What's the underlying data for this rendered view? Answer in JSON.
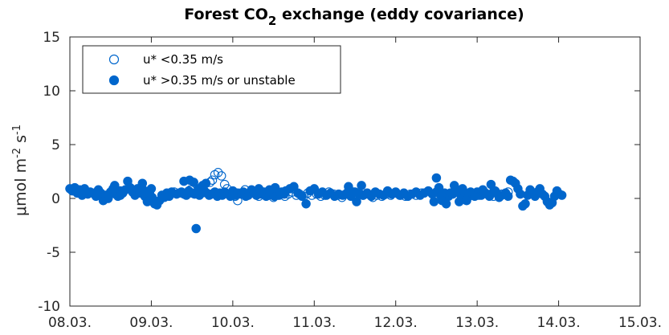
{
  "chart_data": {
    "type": "scatter",
    "title": "Forest CO",
    "title_sub": "2",
    "title_rest": " exchange (eddy covariance)",
    "ylabel": {
      "prefix": "μmol m",
      "exp1": "-2",
      "mid": " s",
      "exp2": "-1"
    },
    "xlabel": "",
    "x_ticks": [
      "08.03.",
      "09.03.",
      "10.03.",
      "11.03.",
      "12.03.",
      "13.03.",
      "14.03.",
      "15.03."
    ],
    "y_ticks": [
      "-10",
      "-5",
      "0",
      "5",
      "10",
      "15"
    ],
    "xlim": [
      0,
      7
    ],
    "ylim": [
      -10,
      15
    ],
    "grid": false,
    "legend_position": "top-left",
    "marker_color": "#0066cc",
    "series": [
      {
        "name": "u* <0.35 m/s",
        "marker": "open-circle",
        "points": [
          [
            0.28,
            0.5
          ],
          [
            1.28,
            0.6
          ],
          [
            1.48,
            0.8
          ],
          [
            1.72,
            1.5
          ],
          [
            1.75,
            1.7
          ],
          [
            1.78,
            2.2
          ],
          [
            1.82,
            2.4
          ],
          [
            1.86,
            2.1
          ],
          [
            1.9,
            1.3
          ],
          [
            1.93,
            0.9
          ],
          [
            1.96,
            0.4
          ],
          [
            2.0,
            0.6
          ],
          [
            2.03,
            0.2
          ],
          [
            2.06,
            -0.2
          ],
          [
            2.1,
            0.5
          ],
          [
            2.15,
            0.8
          ],
          [
            2.19,
            0.3
          ],
          [
            2.23,
            0.7
          ],
          [
            2.28,
            0.4
          ],
          [
            2.32,
            0.2
          ],
          [
            2.36,
            0.5
          ],
          [
            2.4,
            0.3
          ],
          [
            2.45,
            0.4
          ],
          [
            2.5,
            0.1
          ],
          [
            2.55,
            0.3
          ],
          [
            2.6,
            0.5
          ],
          [
            2.64,
            0.2
          ],
          [
            2.68,
            0.4
          ],
          [
            2.73,
            0.6
          ],
          [
            2.78,
            0.3
          ],
          [
            2.82,
            0.4
          ],
          [
            2.87,
            0.2
          ],
          [
            2.92,
            0.5
          ],
          [
            2.97,
            0.3
          ],
          [
            3.03,
            0.4
          ],
          [
            3.08,
            0.2
          ],
          [
            3.13,
            0.3
          ],
          [
            3.18,
            0.6
          ],
          [
            3.24,
            0.4
          ],
          [
            3.29,
            0.3
          ],
          [
            3.34,
            0.1
          ],
          [
            3.39,
            0.4
          ],
          [
            3.45,
            0.3
          ],
          [
            3.5,
            0.2
          ],
          [
            3.55,
            0.5
          ],
          [
            3.6,
            0.3
          ],
          [
            3.66,
            0.4
          ],
          [
            3.72,
            0.1
          ],
          [
            3.77,
            0.3
          ],
          [
            3.83,
            0.2
          ],
          [
            3.88,
            0.4
          ],
          [
            3.94,
            0.3
          ],
          [
            4.0,
            0.5
          ],
          [
            4.06,
            0.3
          ],
          [
            4.12,
            0.2
          ],
          [
            4.18,
            0.4
          ],
          [
            4.25,
            0.3
          ],
          [
            4.32,
            0.5
          ],
          [
            5.02,
            0.3
          ],
          [
            5.1,
            0.5
          ],
          [
            5.2,
            0.2
          ],
          [
            5.3,
            0.4
          ],
          [
            5.38,
            0.6
          ]
        ]
      },
      {
        "name": "u* >0.35 m/s or unstable",
        "marker": "filled-circle",
        "points": [
          [
            0.0,
            0.9
          ],
          [
            0.03,
            0.7
          ],
          [
            0.06,
            1.0
          ],
          [
            0.09,
            0.5
          ],
          [
            0.12,
            0.8
          ],
          [
            0.15,
            0.3
          ],
          [
            0.18,
            0.9
          ],
          [
            0.22,
            0.4
          ],
          [
            0.25,
            0.6
          ],
          [
            0.32,
            0.2
          ],
          [
            0.35,
            0.8
          ],
          [
            0.38,
            0.5
          ],
          [
            0.41,
            -0.2
          ],
          [
            0.44,
            0.3
          ],
          [
            0.47,
            0.0
          ],
          [
            0.5,
            0.6
          ],
          [
            0.53,
            0.9
          ],
          [
            0.56,
            0.4
          ],
          [
            0.59,
            0.2
          ],
          [
            0.62,
            0.7
          ],
          [
            0.65,
            0.5
          ],
          [
            0.68,
            0.8
          ],
          [
            0.71,
            1.6
          ],
          [
            0.74,
            1.0
          ],
          [
            0.77,
            0.6
          ],
          [
            0.8,
            0.3
          ],
          [
            0.83,
            0.9
          ],
          [
            0.86,
            0.5
          ],
          [
            0.89,
            1.4
          ],
          [
            0.92,
            0.2
          ],
          [
            0.95,
            -0.3
          ],
          [
            0.98,
            0.4
          ],
          [
            1.01,
            0.1
          ],
          [
            1.04,
            -0.5
          ],
          [
            1.07,
            -0.6
          ],
          [
            1.1,
            -0.2
          ],
          [
            1.13,
            0.3
          ],
          [
            1.16,
            0.1
          ],
          [
            1.19,
            0.5
          ],
          [
            1.22,
            0.2
          ],
          [
            1.25,
            0.6
          ],
          [
            1.31,
            0.4
          ],
          [
            1.34,
            0.5
          ],
          [
            1.37,
            0.6
          ],
          [
            1.4,
            0.4
          ],
          [
            1.43,
            0.3
          ],
          [
            1.46,
            0.7
          ],
          [
            1.5,
            0.5
          ],
          [
            1.53,
            0.4
          ],
          [
            1.56,
            0.6
          ],
          [
            1.59,
            0.3
          ],
          [
            1.62,
            0.5
          ],
          [
            1.65,
            0.7
          ],
          [
            1.68,
            0.5
          ],
          [
            1.71,
            0.3
          ],
          [
            1.74,
            0.4
          ],
          [
            1.78,
            0.6
          ],
          [
            1.81,
            0.2
          ],
          [
            1.84,
            0.5
          ],
          [
            1.87,
            0.3
          ],
          [
            1.9,
            0.6
          ],
          [
            1.94,
            0.4
          ],
          [
            1.97,
            0.2
          ],
          [
            2.0,
            0.7
          ],
          [
            2.03,
            0.3
          ],
          [
            2.06,
            0.5
          ],
          [
            2.1,
            0.4
          ],
          [
            2.13,
            0.6
          ],
          [
            2.16,
            0.2
          ],
          [
            2.2,
            0.4
          ],
          [
            2.23,
            0.8
          ],
          [
            2.26,
            0.5
          ],
          [
            2.29,
            0.3
          ],
          [
            2.32,
            0.9
          ],
          [
            2.35,
            0.4
          ],
          [
            2.38,
            0.6
          ],
          [
            2.41,
            0.2
          ],
          [
            2.44,
            0.3
          ],
          [
            2.48,
            0.5
          ],
          [
            2.51,
            0.2
          ],
          [
            2.54,
            0.4
          ],
          [
            2.57,
            0.3
          ],
          [
            2.6,
            0.6
          ],
          [
            2.63,
            0.4
          ],
          [
            1.55,
            -2.8
          ],
          [
            1.4,
            1.6
          ],
          [
            1.47,
            1.7
          ],
          [
            1.52,
            1.5
          ],
          [
            1.58,
            0.9
          ],
          [
            1.63,
            1.2
          ],
          [
            1.67,
            1.4
          ],
          [
            2.45,
            0.8
          ],
          [
            2.52,
            1.0
          ],
          [
            2.58,
            0.4
          ],
          [
            2.65,
            0.7
          ],
          [
            2.7,
            0.9
          ],
          [
            2.75,
            1.1
          ],
          [
            2.8,
            0.5
          ],
          [
            2.85,
            0.2
          ],
          [
            2.9,
            -0.5
          ],
          [
            2.95,
            0.7
          ],
          [
            3.0,
            0.9
          ],
          [
            3.05,
            0.4
          ],
          [
            3.1,
            0.6
          ],
          [
            3.15,
            0.3
          ],
          [
            3.2,
            0.5
          ],
          [
            3.25,
            0.2
          ],
          [
            3.3,
            0.4
          ],
          [
            3.35,
            0.3
          ],
          [
            3.4,
            0.5
          ],
          [
            3.45,
            0.2
          ],
          [
            3.5,
            0.6
          ],
          [
            3.55,
            0.4
          ],
          [
            3.6,
            0.3
          ],
          [
            3.65,
            0.5
          ],
          [
            3.7,
            0.2
          ],
          [
            3.75,
            0.6
          ],
          [
            3.8,
            0.4
          ],
          [
            3.85,
            0.3
          ],
          [
            3.9,
            0.7
          ],
          [
            3.95,
            0.4
          ],
          [
            4.0,
            0.6
          ],
          [
            4.05,
            0.3
          ],
          [
            4.1,
            0.5
          ],
          [
            4.15,
            0.2
          ],
          [
            4.2,
            0.4
          ],
          [
            4.25,
            0.6
          ],
          [
            4.3,
            0.3
          ],
          [
            4.35,
            0.5
          ],
          [
            4.4,
            0.7
          ],
          [
            4.45,
            0.4
          ],
          [
            4.5,
            0.6
          ],
          [
            4.55,
            0.3
          ],
          [
            4.6,
            0.5
          ],
          [
            4.65,
            0.2
          ],
          [
            4.7,
            0.4
          ],
          [
            4.75,
            0.6
          ],
          [
            4.8,
            0.3
          ],
          [
            4.85,
            0.5
          ],
          [
            4.9,
            0.2
          ],
          [
            4.95,
            0.4
          ],
          [
            5.0,
            0.6
          ],
          [
            5.05,
            0.3
          ],
          [
            5.1,
            0.5
          ],
          [
            5.15,
            0.2
          ],
          [
            5.2,
            0.6
          ],
          [
            5.25,
            0.4
          ],
          [
            5.3,
            0.3
          ],
          [
            5.35,
            0.5
          ],
          [
            5.38,
            0.2
          ],
          [
            5.41,
            1.7
          ],
          [
            5.44,
            1.6
          ],
          [
            5.47,
            1.4
          ],
          [
            5.5,
            0.9
          ],
          [
            5.53,
            0.4
          ],
          [
            5.56,
            -0.7
          ],
          [
            5.59,
            -0.5
          ],
          [
            5.62,
            0.3
          ],
          [
            5.65,
            0.8
          ],
          [
            5.68,
            0.5
          ],
          [
            5.71,
            0.2
          ],
          [
            5.74,
            0.6
          ],
          [
            5.77,
            0.9
          ],
          [
            5.8,
            0.4
          ],
          [
            5.83,
            0.2
          ],
          [
            5.86,
            -0.3
          ],
          [
            5.89,
            -0.6
          ],
          [
            5.92,
            -0.4
          ],
          [
            5.95,
            0.2
          ],
          [
            5.98,
            0.7
          ],
          [
            6.01,
            0.4
          ],
          [
            6.04,
            0.3
          ],
          [
            4.5,
            1.9
          ],
          [
            4.53,
            1.0
          ],
          [
            4.47,
            -0.3
          ],
          [
            4.57,
            -0.2
          ],
          [
            4.62,
            -0.5
          ],
          [
            4.67,
            0.5
          ],
          [
            4.72,
            1.2
          ],
          [
            4.78,
            -0.3
          ],
          [
            4.82,
            0.9
          ],
          [
            4.87,
            -0.2
          ],
          [
            4.92,
            0.6
          ],
          [
            4.97,
            0.2
          ],
          [
            5.07,
            0.8
          ],
          [
            5.12,
            0.4
          ],
          [
            5.17,
            1.3
          ],
          [
            5.22,
            0.7
          ],
          [
            5.27,
            0.1
          ],
          [
            3.42,
            1.1
          ],
          [
            3.48,
            0.6
          ],
          [
            3.52,
            -0.3
          ],
          [
            3.58,
            1.2
          ],
          [
            0.12,
            0.6
          ],
          [
            0.55,
            1.2
          ],
          [
            0.62,
            0.3
          ],
          [
            0.9,
            0.8
          ],
          [
            1.0,
            0.9
          ]
        ]
      }
    ]
  }
}
